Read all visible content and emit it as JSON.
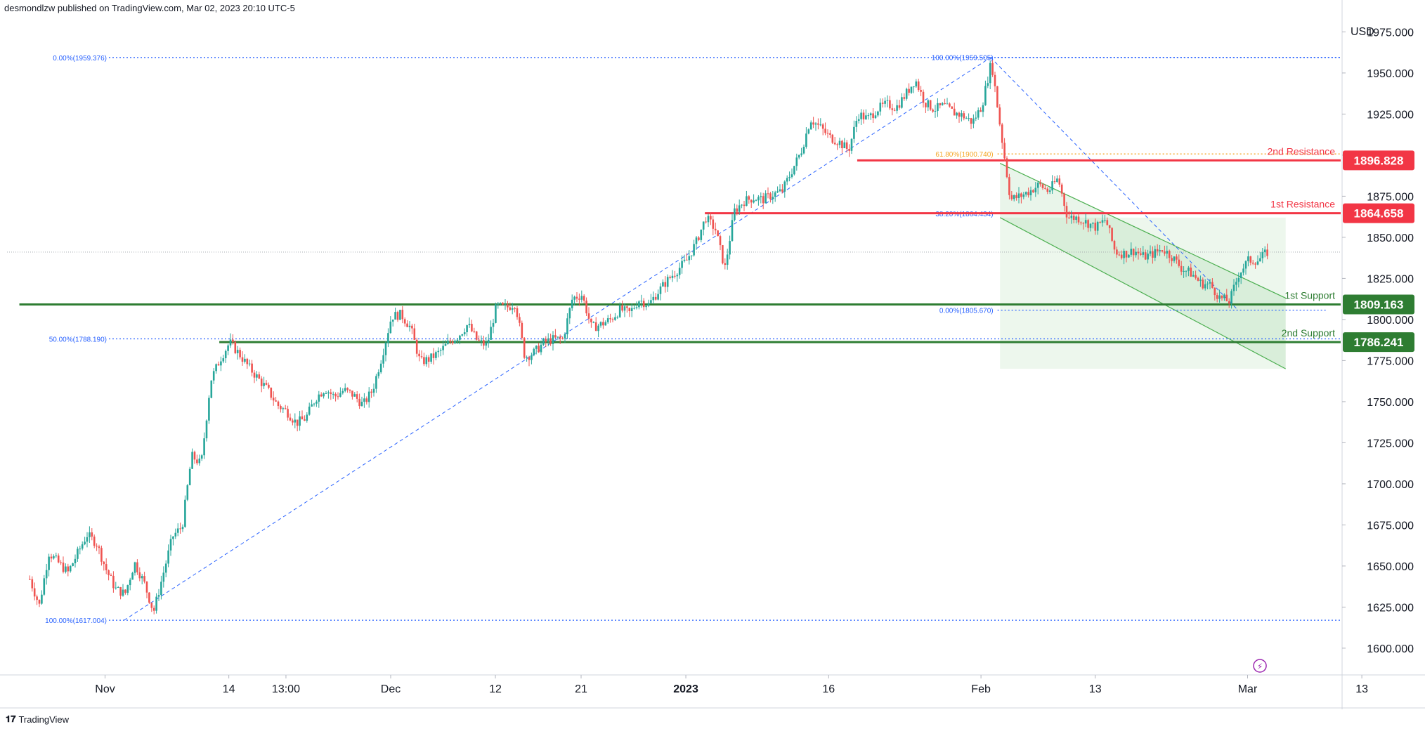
{
  "header": {
    "publisher_line": "desmondlzw published on TradingView.com, Mar 02, 2023 20:10 UTC-5"
  },
  "footer": {
    "brand": "TradingView",
    "logo_icon": "tradingview-logo-icon"
  },
  "colors": {
    "up": "#26a69a",
    "down": "#ef5350",
    "resistance": "#f23645",
    "support": "#2e7d32",
    "fib": "#2962ff",
    "fib_gold": "#f5a623",
    "channel": "#4caf50",
    "channel_fill": "#e8f5e9"
  },
  "chart_data": {
    "type": "candlestick",
    "title": "",
    "currency_label": "USD",
    "y_range": [
      1585,
      1985
    ],
    "grid": false,
    "y_ticks": [
      "1975.000",
      "1950.000",
      "1925.000",
      "1900.000",
      "1875.000",
      "1850.000",
      "1825.000",
      "1800.000",
      "1775.000",
      "1750.000",
      "1725.000",
      "1700.000",
      "1675.000",
      "1650.000",
      "1625.000",
      "1600.000"
    ],
    "y_tick_values": [
      1975,
      1950,
      1925,
      1900,
      1875,
      1850,
      1825,
      1800,
      1775,
      1750,
      1725,
      1700,
      1675,
      1650,
      1625,
      1600
    ],
    "x_ticks": [
      {
        "label": "Nov",
        "date": "2022-11-01",
        "bold": false
      },
      {
        "label": "14",
        "date": "2022-11-14",
        "bold": false
      },
      {
        "label": "13:00",
        "date": "2022-11-20",
        "bold": false
      },
      {
        "label": "Dec",
        "date": "2022-12-01",
        "bold": false
      },
      {
        "label": "12",
        "date": "2022-12-12",
        "bold": false
      },
      {
        "label": "21",
        "date": "2022-12-21",
        "bold": false
      },
      {
        "label": "2023",
        "date": "2023-01-01",
        "bold": true
      },
      {
        "label": "16",
        "date": "2023-01-16",
        "bold": false
      },
      {
        "label": "Feb",
        "date": "2023-02-01",
        "bold": false
      },
      {
        "label": "13",
        "date": "2023-02-13",
        "bold": false
      },
      {
        "label": "Mar",
        "date": "2023-03-01",
        "bold": false
      },
      {
        "label": "13",
        "date": "2023-03-13",
        "bold": false
      }
    ],
    "price_path": [
      [
        "2022-10-24",
        1642
      ],
      [
        "2022-10-25",
        1626
      ],
      [
        "2022-10-26",
        1658
      ],
      [
        "2022-10-27",
        1652
      ],
      [
        "2022-10-28",
        1646
      ],
      [
        "2022-10-30",
        1669
      ],
      [
        "2022-10-31",
        1664
      ],
      [
        "2022-11-01",
        1648
      ],
      [
        "2022-11-02",
        1636
      ],
      [
        "2022-11-03",
        1633
      ],
      [
        "2022-11-04",
        1652
      ],
      [
        "2022-11-05",
        1640
      ],
      [
        "2022-11-06",
        1622
      ],
      [
        "2022-11-07",
        1645
      ],
      [
        "2022-11-08",
        1668
      ],
      [
        "2022-11-09",
        1674
      ],
      [
        "2022-11-10",
        1717
      ],
      [
        "2022-11-11",
        1712
      ],
      [
        "2022-11-12",
        1763
      ],
      [
        "2022-11-13",
        1776
      ],
      [
        "2022-11-14",
        1786
      ],
      [
        "2022-11-15",
        1779
      ],
      [
        "2022-11-16",
        1771
      ],
      [
        "2022-11-17",
        1764
      ],
      [
        "2022-11-18",
        1757
      ],
      [
        "2022-11-19",
        1748
      ],
      [
        "2022-11-20",
        1744
      ],
      [
        "2022-11-21",
        1737
      ],
      [
        "2022-11-22",
        1740
      ],
      [
        "2022-11-23",
        1752
      ],
      [
        "2022-11-24",
        1758
      ],
      [
        "2022-11-25",
        1753
      ],
      [
        "2022-11-26",
        1757
      ],
      [
        "2022-11-27",
        1754
      ],
      [
        "2022-11-28",
        1748
      ],
      [
        "2022-11-29",
        1757
      ],
      [
        "2022-11-30",
        1778
      ],
      [
        "2022-12-01",
        1802
      ],
      [
        "2022-12-02",
        1803
      ],
      [
        "2022-12-03",
        1795
      ],
      [
        "2022-12-04",
        1774
      ],
      [
        "2022-12-05",
        1776
      ],
      [
        "2022-12-06",
        1780
      ],
      [
        "2022-12-07",
        1786
      ],
      [
        "2022-12-08",
        1790
      ],
      [
        "2022-12-09",
        1797
      ],
      [
        "2022-12-10",
        1787
      ],
      [
        "2022-12-11",
        1784
      ],
      [
        "2022-12-12",
        1808
      ],
      [
        "2022-12-13",
        1807
      ],
      [
        "2022-12-14",
        1810
      ],
      [
        "2022-12-15",
        1777
      ],
      [
        "2022-12-16",
        1780
      ],
      [
        "2022-12-17",
        1786
      ],
      [
        "2022-12-18",
        1788
      ],
      [
        "2022-12-19",
        1788
      ],
      [
        "2022-12-20",
        1813
      ],
      [
        "2022-12-21",
        1815
      ],
      [
        "2022-12-22",
        1795
      ],
      [
        "2022-12-23",
        1797
      ],
      [
        "2022-12-24",
        1800
      ],
      [
        "2022-12-25",
        1806
      ],
      [
        "2022-12-26",
        1804
      ],
      [
        "2022-12-27",
        1812
      ],
      [
        "2022-12-28",
        1809
      ],
      [
        "2022-12-29",
        1817
      ],
      [
        "2022-12-30",
        1824
      ],
      [
        "2022-12-31",
        1830
      ],
      [
        "2023-01-01",
        1836
      ],
      [
        "2023-01-02",
        1847
      ],
      [
        "2023-01-03",
        1862
      ],
      [
        "2023-01-04",
        1855
      ],
      [
        "2023-01-05",
        1831
      ],
      [
        "2023-01-06",
        1866
      ],
      [
        "2023-01-07",
        1872
      ],
      [
        "2023-01-08",
        1874
      ],
      [
        "2023-01-09",
        1873
      ],
      [
        "2023-01-10",
        1876
      ],
      [
        "2023-01-11",
        1878
      ],
      [
        "2023-01-12",
        1890
      ],
      [
        "2023-01-13",
        1902
      ],
      [
        "2023-01-14",
        1922
      ],
      [
        "2023-01-15",
        1917
      ],
      [
        "2023-01-16",
        1911
      ],
      [
        "2023-01-17",
        1908
      ],
      [
        "2023-01-18",
        1903
      ],
      [
        "2023-01-19",
        1925
      ],
      [
        "2023-01-20",
        1922
      ],
      [
        "2023-01-21",
        1928
      ],
      [
        "2023-01-22",
        1931
      ],
      [
        "2023-01-23",
        1929
      ],
      [
        "2023-01-24",
        1937
      ],
      [
        "2023-01-25",
        1946
      ],
      [
        "2023-01-26",
        1932
      ],
      [
        "2023-01-27",
        1928
      ],
      [
        "2023-01-28",
        1930
      ],
      [
        "2023-01-29",
        1926
      ],
      [
        "2023-01-30",
        1924
      ],
      [
        "2023-01-31",
        1920
      ],
      [
        "2023-02-01",
        1930
      ],
      [
        "2023-02-02",
        1957
      ],
      [
        "2023-02-03",
        1914
      ],
      [
        "2023-02-04",
        1873
      ],
      [
        "2023-02-05",
        1875
      ],
      [
        "2023-02-06",
        1878
      ],
      [
        "2023-02-07",
        1882
      ],
      [
        "2023-02-08",
        1878
      ],
      [
        "2023-02-09",
        1886
      ],
      [
        "2023-02-10",
        1862
      ],
      [
        "2023-02-11",
        1862
      ],
      [
        "2023-02-12",
        1859
      ],
      [
        "2023-02-13",
        1856
      ],
      [
        "2023-02-14",
        1861
      ],
      [
        "2023-02-15",
        1841
      ],
      [
        "2023-02-16",
        1840
      ],
      [
        "2023-02-17",
        1842
      ],
      [
        "2023-02-18",
        1838
      ],
      [
        "2023-02-19",
        1840
      ],
      [
        "2023-02-20",
        1843
      ],
      [
        "2023-02-21",
        1838
      ],
      [
        "2023-02-22",
        1831
      ],
      [
        "2023-02-23",
        1828
      ],
      [
        "2023-02-24",
        1822
      ],
      [
        "2023-02-25",
        1821
      ],
      [
        "2023-02-26",
        1813
      ],
      [
        "2023-02-27",
        1811
      ],
      [
        "2023-02-28",
        1828
      ],
      [
        "2023-03-01",
        1836
      ],
      [
        "2023-03-02",
        1836
      ],
      [
        "2023-03-03",
        1841
      ]
    ],
    "levels": [
      {
        "name": "2nd Resistance",
        "value": 1896.828,
        "label": "2nd Resistance",
        "tag": "1896.828",
        "kind": "resistance",
        "from_date": "2023-01-19"
      },
      {
        "name": "1st Resistance",
        "value": 1864.658,
        "label": "1st Resistance",
        "tag": "1864.658",
        "kind": "resistance",
        "from_date": "2023-01-03"
      },
      {
        "name": "1st Support",
        "value": 1809.163,
        "label": "1st Support",
        "tag": "1809.163",
        "kind": "support",
        "from_date": "2022-10-23"
      },
      {
        "name": "2nd Support",
        "value": 1786.241,
        "label": "2nd Support",
        "tag": "1786.241",
        "kind": "support",
        "from_date": "2022-11-13"
      }
    ],
    "current_price": 1841,
    "fib_retracement_up": {
      "labels": [
        "0.00%(1959.376)",
        "50.00%(1788.190)",
        "100.00%(1617.004)"
      ],
      "values": [
        1959.376,
        1788.19,
        1617.004
      ],
      "trend_from": [
        "2022-11-03",
        1617.004
      ],
      "trend_to": [
        "2023-02-02",
        1959.376
      ]
    },
    "fib_retracement_down": {
      "labels": [
        "100.00%(1959.505)",
        "61.80%(1900.740)",
        "38.20%(1864.434)",
        "0.00%(1805.670)"
      ],
      "values": [
        1959.505,
        1900.74,
        1864.434,
        1805.67
      ],
      "trend_from": [
        "2023-02-02",
        1959.505
      ],
      "trend_to": [
        "2023-02-28",
        1805.67
      ]
    },
    "channel": {
      "upper": [
        [
          "2023-02-03",
          1895
        ],
        [
          "2023-03-05",
          1813
        ]
      ],
      "lower": [
        [
          "2023-02-03",
          1862
        ],
        [
          "2023-03-05",
          1770
        ]
      ],
      "fill_box": [
        [
          "2023-02-03",
          1862
        ],
        [
          "2023-03-05",
          1770
        ]
      ]
    },
    "annotations": [
      "⚡"
    ]
  }
}
